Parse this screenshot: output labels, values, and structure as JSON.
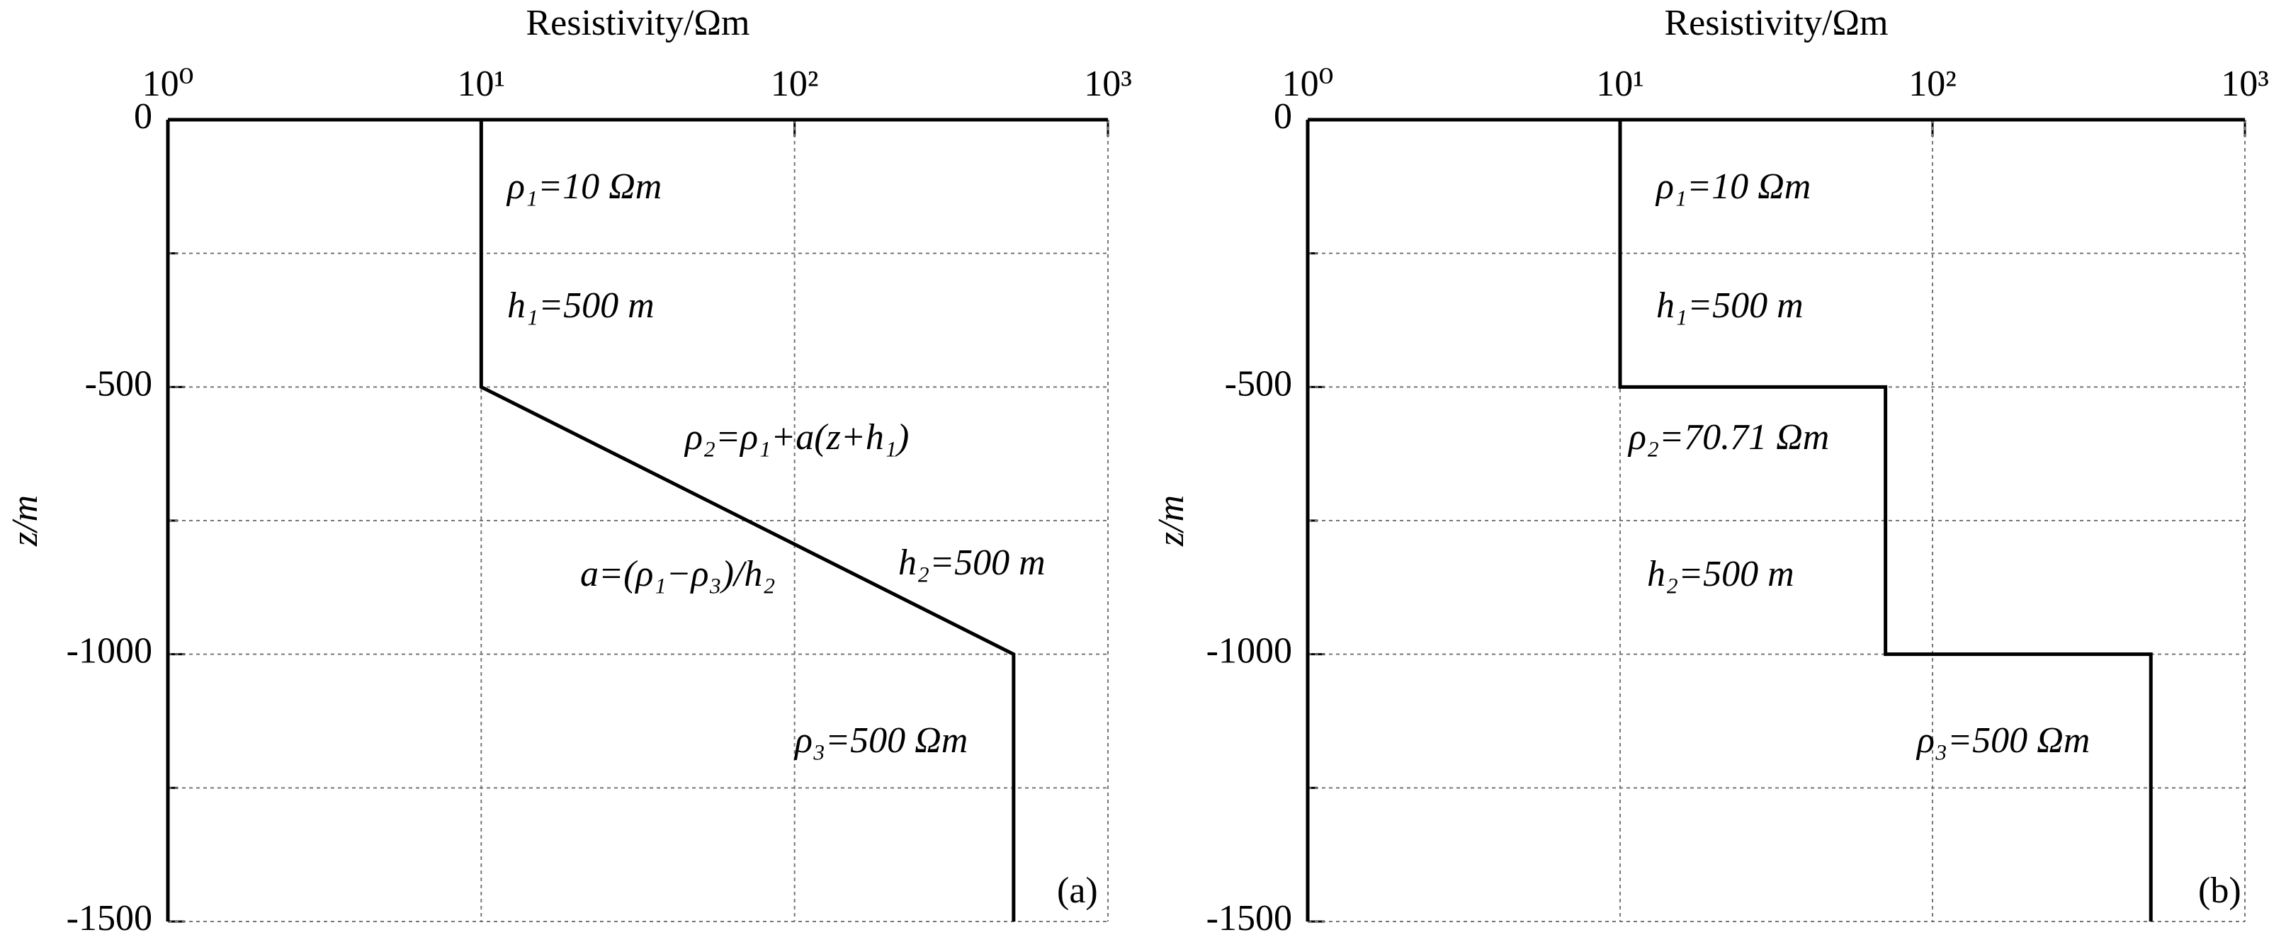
{
  "chart_data": [
    {
      "type": "line",
      "title": "Resistivity/Ωm",
      "y_label": "z/m",
      "panel_label": "(a)",
      "xscale": "log",
      "xlim": [
        1,
        1000
      ],
      "xticks": [
        {
          "value": 1,
          "label": "10⁰"
        },
        {
          "value": 10,
          "label": "10¹"
        },
        {
          "value": 100,
          "label": "10²"
        },
        {
          "value": 1000,
          "label": "10³"
        }
      ],
      "ylim": [
        -1500,
        0
      ],
      "yticks": [
        0,
        -500,
        -1000,
        -1500
      ],
      "yminor_ticks": [
        -250,
        -750,
        -1250
      ],
      "grid": true,
      "series": [
        {
          "color": "#000000",
          "x": [
            10,
            10,
            500,
            500
          ],
          "values": [
            0,
            -500,
            -1000,
            -1500
          ]
        }
      ],
      "annotations": [
        "ρ₁=10 Ωm",
        "h₁=500 m",
        "ρ₂=ρ₁+a(z+h₁)",
        "a=(ρ₁−ρ₃)/h₂",
        "h₂=500 m",
        "ρ₃=500 Ωm"
      ]
    },
    {
      "type": "line",
      "title": "Resistivity/Ωm",
      "y_label": "z/m",
      "panel_label": "(b)",
      "xscale": "log",
      "xlim": [
        1,
        1000
      ],
      "xticks": [
        {
          "value": 1,
          "label": "10⁰"
        },
        {
          "value": 10,
          "label": "10¹"
        },
        {
          "value": 100,
          "label": "10²"
        },
        {
          "value": 1000,
          "label": "10³"
        }
      ],
      "ylim": [
        -1500,
        0
      ],
      "yticks": [
        0,
        -500,
        -1000,
        -1500
      ],
      "yminor_ticks": [
        -250,
        -750,
        -1250
      ],
      "grid": true,
      "series": [
        {
          "color": "#000000",
          "x": [
            10,
            10,
            70.71,
            70.71,
            500,
            500
          ],
          "values": [
            0,
            -500,
            -500,
            -1000,
            -1000,
            -1500
          ]
        }
      ],
      "annotations": [
        "ρ₁=10 Ωm",
        "h₁=500 m",
        "ρ₂=70.71 Ωm",
        "h₂=500 m",
        "ρ₃=500 Ωm"
      ]
    }
  ]
}
